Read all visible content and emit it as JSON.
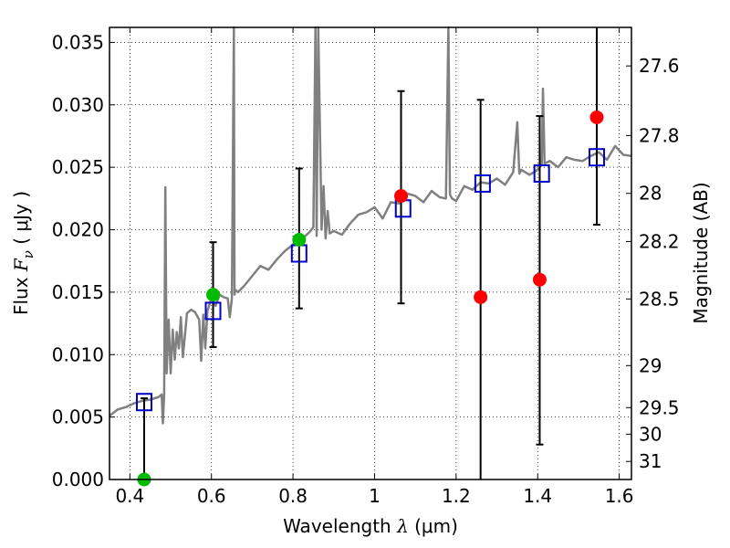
{
  "chart_data": {
    "type": "scatter",
    "xlabel": {
      "prefix": "Wavelength  ",
      "symbol": "λ",
      "unit": " (μm)"
    },
    "ylabel": {
      "prefix": "Flux  ",
      "symbol": "F",
      "subscript": "ν",
      "unit": "  ( μJy )"
    },
    "y2label": "Magnitude (AB)",
    "xlim": [
      0.35,
      1.63
    ],
    "ylim": [
      0.0,
      0.0362
    ],
    "xticks": [
      0.4,
      0.6,
      0.8,
      1.0,
      1.2,
      1.4,
      1.6
    ],
    "xtick_labels": [
      "0.4",
      "0.6",
      "0.8",
      "1",
      "1.2",
      "1.4",
      "1.6"
    ],
    "yticks": [
      0.0,
      0.005,
      0.01,
      0.015,
      0.02,
      0.025,
      0.03,
      0.035
    ],
    "ytick_labels": [
      "0.000",
      "0.005",
      "0.010",
      "0.015",
      "0.020",
      "0.025",
      "0.030",
      "0.035"
    ],
    "y2ticks": [
      27.6,
      27.8,
      28,
      28.2,
      28.5,
      29,
      29.5,
      30,
      31
    ],
    "y2tick_labels": [
      "27.6",
      "27.8",
      "28",
      "28.2",
      "28.5",
      "29",
      "29.5",
      "30",
      "31"
    ],
    "grid": true,
    "colors": {
      "spectrum": "#808080",
      "model": "#0000cc",
      "observed_green": "#00bb00",
      "observed_red": "#ff0000",
      "errorbar": "#000000"
    },
    "spectrum": {
      "x": [
        0.35,
        0.37,
        0.39,
        0.41,
        0.43,
        0.45,
        0.47,
        0.478,
        0.481,
        0.484,
        0.487,
        0.49,
        0.495,
        0.5,
        0.505,
        0.51,
        0.515,
        0.52,
        0.525,
        0.53,
        0.54,
        0.55,
        0.56,
        0.57,
        0.575,
        0.58,
        0.585,
        0.59,
        0.6,
        0.61,
        0.62,
        0.63,
        0.64,
        0.645,
        0.65,
        0.655,
        0.6565,
        0.658,
        0.665,
        0.68,
        0.7,
        0.72,
        0.74,
        0.76,
        0.78,
        0.8,
        0.82,
        0.84,
        0.85,
        0.855,
        0.858,
        0.862,
        0.87,
        0.875,
        0.88,
        0.885,
        0.89,
        0.9,
        0.92,
        0.94,
        0.96,
        0.98,
        1.0,
        1.02,
        1.04,
        1.06,
        1.08,
        1.1,
        1.12,
        1.14,
        1.16,
        1.175,
        1.181,
        1.185,
        1.19,
        1.2,
        1.22,
        1.24,
        1.26,
        1.28,
        1.3,
        1.32,
        1.34,
        1.35,
        1.355,
        1.36,
        1.38,
        1.4,
        1.41,
        1.413,
        1.417,
        1.43,
        1.45,
        1.47,
        1.49,
        1.51,
        1.53,
        1.55,
        1.57,
        1.59,
        1.61,
        1.63
      ],
      "y": [
        0.0051,
        0.0056,
        0.0058,
        0.0061,
        0.0063,
        0.0064,
        0.0066,
        0.0068,
        0.0045,
        0.0068,
        0.0234,
        0.0085,
        0.0128,
        0.0085,
        0.012,
        0.0096,
        0.0118,
        0.0105,
        0.013,
        0.0098,
        0.0133,
        0.0136,
        0.0134,
        0.0128,
        0.0095,
        0.0132,
        0.0105,
        0.0135,
        0.0145,
        0.0139,
        0.0148,
        0.0146,
        0.0145,
        0.013,
        0.0145,
        0.0362,
        0.0148,
        0.0152,
        0.015,
        0.0155,
        0.0163,
        0.0171,
        0.0168,
        0.0176,
        0.0183,
        0.0188,
        0.0192,
        0.0198,
        0.0202,
        0.0362,
        0.0195,
        0.0362,
        0.02,
        0.0235,
        0.0193,
        0.0215,
        0.0197,
        0.0199,
        0.0196,
        0.0205,
        0.0212,
        0.0214,
        0.0218,
        0.0209,
        0.0222,
        0.0221,
        0.0229,
        0.0227,
        0.0222,
        0.0231,
        0.0226,
        0.0225,
        0.0362,
        0.0228,
        0.0225,
        0.0223,
        0.0235,
        0.0232,
        0.0238,
        0.0237,
        0.0241,
        0.0236,
        0.0246,
        0.0286,
        0.0245,
        0.0248,
        0.0244,
        0.0248,
        0.0252,
        0.0313,
        0.0253,
        0.0255,
        0.025,
        0.0258,
        0.0256,
        0.0255,
        0.0259,
        0.0262,
        0.0256,
        0.0267,
        0.026,
        0.0259
      ]
    },
    "series": [
      {
        "marker": "square",
        "x": [
          0.435,
          0.604,
          0.815,
          1.07,
          1.265,
          1.41,
          1.545
        ],
        "y": [
          0.0062,
          0.0135,
          0.0181,
          0.0217,
          0.0237,
          0.0245,
          0.0258
        ]
      },
      {
        "marker": "circle",
        "color": "green",
        "x": [
          0.435,
          0.604,
          0.815
        ],
        "y": [
          0.0,
          0.0148,
          0.0192
        ]
      },
      {
        "marker": "circle",
        "color": "red",
        "x": [
          1.065,
          1.26,
          1.405,
          1.545
        ],
        "y": [
          0.0227,
          0.0146,
          0.016,
          0.029
        ]
      }
    ],
    "errorbars": [
      {
        "x": 0.435,
        "low": 0.0,
        "high": 0.0065
      },
      {
        "x": 0.604,
        "low": 0.0106,
        "high": 0.019
      },
      {
        "x": 0.815,
        "low": 0.0137,
        "high": 0.0249
      },
      {
        "x": 1.065,
        "low": 0.0141,
        "high": 0.0311
      },
      {
        "x": 1.26,
        "low": 0.0,
        "high": 0.0304
      },
      {
        "x": 1.405,
        "low": 0.0028,
        "high": 0.0291
      },
      {
        "x": 1.545,
        "low": 0.0204,
        "high": 0.0362
      }
    ]
  }
}
